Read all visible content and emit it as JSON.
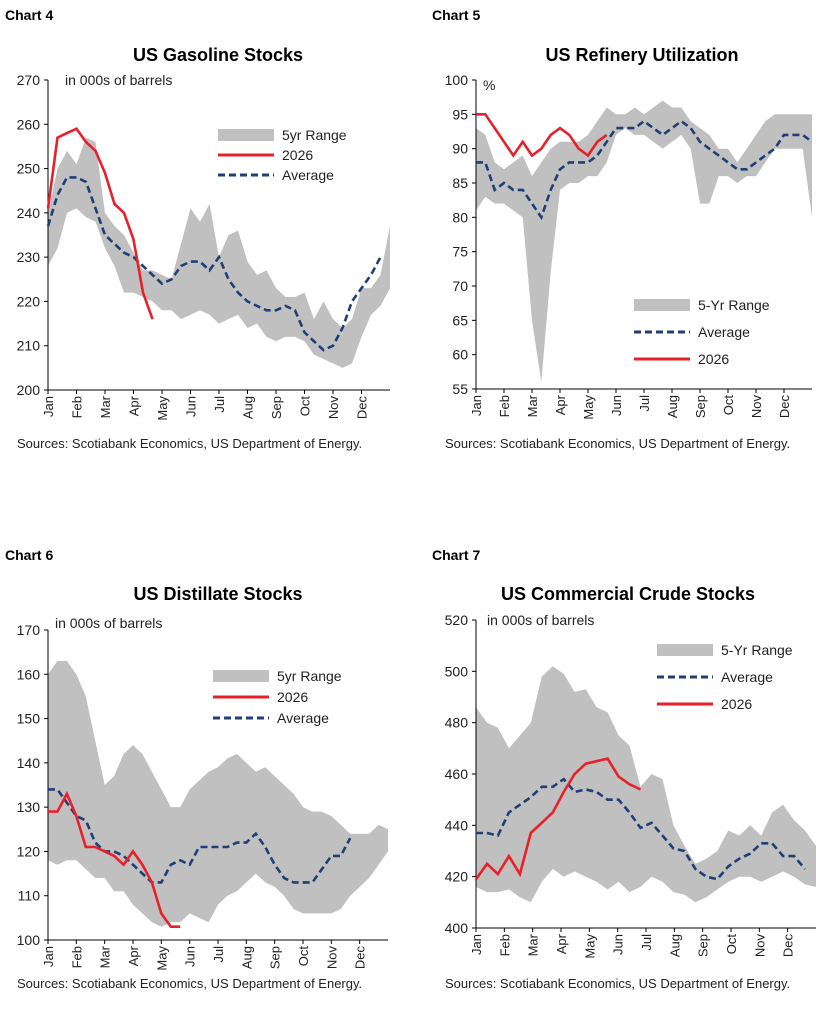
{
  "charts": [
    {
      "chart_number": "Chart 4",
      "source": "Sources: Scotiabank Economics, US Department of Energy.",
      "colors": {
        "range": "#c0c0c0",
        "current": "#e8202a",
        "average": "#1f3f76"
      },
      "chart_data": {
        "type": "area",
        "title": "US Gasoline Stocks",
        "unit_label": "in 000s of barrels",
        "ylim": [
          200,
          270
        ],
        "yticks": [
          200,
          210,
          220,
          230,
          240,
          250,
          260,
          270
        ],
        "months": [
          "Jan",
          "Feb",
          "Mar",
          "Apr",
          "May",
          "Jun",
          "Jul",
          "Aug",
          "Sep",
          "Oct",
          "Nov",
          "Dec"
        ],
        "legend": [
          "5yr Range",
          "2026",
          "Average"
        ],
        "range_upper": [
          240,
          250,
          254,
          251,
          257,
          256,
          240,
          237,
          235,
          231,
          227,
          227,
          226,
          225,
          233,
          241,
          238,
          242,
          230,
          235,
          236,
          229,
          226,
          227,
          223,
          221,
          221,
          222,
          216,
          220,
          216,
          214,
          216,
          223,
          223,
          226,
          237
        ],
        "range_lower": [
          228,
          232,
          240,
          241,
          239,
          238,
          232,
          228,
          222,
          222,
          221,
          220,
          218,
          218,
          216,
          217,
          218,
          217,
          215,
          216,
          217,
          214,
          215,
          212,
          211,
          212,
          212,
          211,
          208,
          207,
          206,
          205,
          206,
          212,
          217,
          219,
          223
        ],
        "average": [
          237,
          244,
          248,
          248,
          247,
          241,
          235,
          233,
          231,
          230,
          228,
          226,
          224,
          225,
          228,
          229,
          229,
          227,
          230,
          225,
          222,
          220,
          219,
          218,
          218,
          219,
          218,
          213,
          211,
          209,
          210,
          214,
          220,
          223,
          226,
          230
        ],
        "current": [
          241,
          257,
          258,
          259,
          256,
          254,
          249,
          242,
          240,
          234,
          222,
          216
        ]
      }
    },
    {
      "chart_number": "Chart 5",
      "source": "Sources: Scotiabank Economics, US Department of Energy.",
      "colors": {
        "range": "#c0c0c0",
        "current": "#e8202a",
        "average": "#1f3f76"
      },
      "chart_data": {
        "type": "area",
        "title": "US Refinery Utilization",
        "unit_label": "%",
        "ylim": [
          55,
          100
        ],
        "yticks": [
          55,
          60,
          65,
          70,
          75,
          80,
          85,
          90,
          95,
          100
        ],
        "months": [
          "Jan",
          "Feb",
          "Mar",
          "Apr",
          "May",
          "Jun",
          "Jul",
          "Aug",
          "Sep",
          "Oct",
          "Nov",
          "Dec"
        ],
        "legend": [
          "5-Yr Range",
          "Average",
          "2026"
        ],
        "range_upper": [
          93,
          92,
          88,
          87,
          88,
          89,
          86,
          88,
          90,
          91,
          91,
          91,
          92,
          94,
          96,
          95,
          95,
          96,
          95,
          96,
          97,
          96,
          96,
          94,
          93,
          92,
          90,
          90,
          88,
          90,
          92,
          94,
          95,
          95,
          95,
          95,
          95
        ],
        "range_lower": [
          81,
          83,
          82,
          82,
          81,
          80,
          65,
          56,
          72,
          84,
          85,
          85,
          86,
          86,
          88,
          92,
          93,
          92,
          92,
          91,
          90,
          91,
          92,
          90,
          82,
          82,
          86,
          86,
          85,
          86,
          86,
          88,
          90,
          90,
          90,
          90,
          80
        ],
        "average": [
          88,
          88,
          84,
          85,
          84,
          84,
          82,
          80,
          84,
          87,
          88,
          88,
          88,
          89,
          91,
          93,
          93,
          93,
          94,
          93,
          92,
          93,
          94,
          93,
          91,
          90,
          89,
          88,
          87,
          87,
          88,
          89,
          90,
          92,
          92,
          92,
          91
        ],
        "current": [
          95,
          95,
          93,
          91,
          89,
          91,
          89,
          90,
          92,
          93,
          92,
          90,
          89,
          91,
          92
        ]
      }
    },
    {
      "chart_number": "Chart 6",
      "source": "Sources: Scotiabank Economics, US Department of Energy.",
      "colors": {
        "range": "#c0c0c0",
        "current": "#e8202a",
        "average": "#1f3f76"
      },
      "chart_data": {
        "type": "area",
        "title": "US Distillate Stocks",
        "unit_label": "in 000s of barrels",
        "ylim": [
          100,
          170
        ],
        "yticks": [
          100,
          110,
          120,
          130,
          140,
          150,
          160,
          170
        ],
        "months": [
          "Jan",
          "Feb",
          "Mar",
          "Apr",
          "May",
          "Jun",
          "Jul",
          "Aug",
          "Sep",
          "Oct",
          "Nov",
          "Dec"
        ],
        "legend": [
          "5yr Range",
          "2026",
          "Average"
        ],
        "range_upper": [
          160,
          163,
          163,
          160,
          155,
          145,
          135,
          137,
          142,
          144,
          142,
          138,
          134,
          130,
          130,
          134,
          136,
          138,
          139,
          141,
          142,
          140,
          138,
          139,
          137,
          135,
          133,
          130,
          129,
          129,
          128,
          126,
          124,
          124,
          124,
          126,
          125
        ],
        "range_lower": [
          118,
          117,
          118,
          118,
          116,
          114,
          114,
          111,
          111,
          108,
          106,
          104,
          103,
          104,
          104,
          106,
          105,
          104,
          108,
          110,
          111,
          113,
          115,
          113,
          112,
          110,
          107,
          106,
          106,
          106,
          106,
          107,
          110,
          112,
          114,
          117,
          120
        ],
        "average": [
          134,
          134,
          131,
          128,
          127,
          122,
          120,
          120,
          119,
          117,
          115,
          113,
          113,
          117,
          118,
          117,
          121,
          121,
          121,
          121,
          122,
          122,
          124,
          121,
          117,
          114,
          113,
          113,
          113,
          116,
          119,
          119,
          123
        ],
        "current": [
          129,
          129,
          133,
          128,
          121,
          121,
          120,
          119,
          117,
          120,
          117,
          113,
          106,
          103,
          103
        ]
      }
    },
    {
      "chart_number": "Chart 7",
      "source": "Sources: Scotiabank Economics, US Department of Energy.",
      "colors": {
        "range": "#c0c0c0",
        "current": "#e8202a",
        "average": "#1f3f76"
      },
      "chart_data": {
        "type": "area",
        "title": "US Commercial Crude Stocks",
        "unit_label": "in 000s of barrels",
        "ylim": [
          400,
          520
        ],
        "yticks": [
          400,
          420,
          440,
          460,
          480,
          500,
          520
        ],
        "months": [
          "Jan",
          "Feb",
          "Mar",
          "Apr",
          "May",
          "Jun",
          "Jul",
          "Aug",
          "Sep",
          "Oct",
          "Nov",
          "Dec"
        ],
        "legend": [
          "5-Yr Range",
          "Average",
          "2026"
        ],
        "range_upper": [
          486,
          480,
          478,
          470,
          475,
          480,
          498,
          502,
          499,
          492,
          493,
          486,
          484,
          475,
          471,
          455,
          460,
          458,
          440,
          432,
          425,
          427,
          430,
          438,
          436,
          440,
          436,
          445,
          448,
          442,
          438,
          432
        ],
        "range_lower": [
          416,
          414,
          414,
          415,
          412,
          410,
          418,
          423,
          420,
          422,
          420,
          418,
          415,
          418,
          414,
          416,
          420,
          418,
          414,
          413,
          410,
          412,
          415,
          418,
          420,
          420,
          418,
          420,
          422,
          420,
          417,
          416
        ],
        "average": [
          437,
          437,
          436,
          445,
          448,
          451,
          455,
          455,
          458,
          453,
          454,
          453,
          450,
          450,
          445,
          439,
          441,
          436,
          431,
          430,
          423,
          420,
          419,
          424,
          427,
          429,
          433,
          433,
          428,
          428,
          423
        ],
        "current": [
          419,
          425,
          421,
          428,
          421,
          437,
          441,
          445,
          453,
          460,
          464,
          465,
          466,
          459,
          456,
          454
        ]
      }
    }
  ]
}
